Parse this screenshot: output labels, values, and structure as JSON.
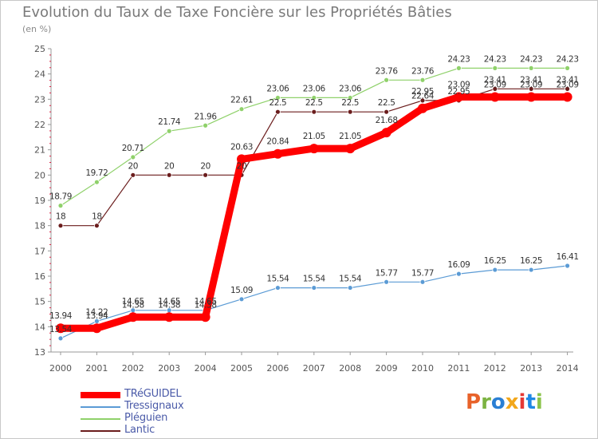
{
  "chart_data": {
    "type": "line",
    "title": "Evolution du Taux de Taxe Foncière sur les Propriétés Bâties",
    "subtitle": "(en %)",
    "xlabel": "",
    "ylabel": "",
    "ylim": [
      13,
      25
    ],
    "yticks": [
      "13",
      "14",
      "15",
      "16",
      "17",
      "18",
      "19",
      "20",
      "21",
      "22",
      "23",
      "24",
      "25"
    ],
    "categories": [
      "2000",
      "2001",
      "2002",
      "2003",
      "2004",
      "2005",
      "2006",
      "2007",
      "2008",
      "2009",
      "2010",
      "2011",
      "2012",
      "2013",
      "2014"
    ],
    "series": [
      {
        "name": "TRéGUIDEL",
        "color": "#ff0000",
        "values": [
          13.94,
          13.94,
          14.38,
          14.38,
          14.38,
          20.63,
          20.84,
          21.05,
          21.05,
          21.68,
          22.64,
          23.09,
          23.09,
          23.09,
          23.09
        ],
        "labels": [
          "13.94",
          "13.94",
          "14.38",
          "14.38",
          "14.38",
          "20.63",
          "20.84",
          "21.05",
          "21.05",
          "21.68",
          "22.64",
          "23.09",
          "23.09",
          "23.09",
          "23.09"
        ]
      },
      {
        "name": "Tressignaux",
        "color": "#5b9bd5",
        "values": [
          13.54,
          14.22,
          14.65,
          14.65,
          14.65,
          15.09,
          15.54,
          15.54,
          15.54,
          15.77,
          15.77,
          16.09,
          16.25,
          16.25,
          16.41
        ],
        "labels": [
          "13.54",
          "14.22",
          "14.65",
          "14.65",
          "14.65",
          "15.09",
          "15.54",
          "15.54",
          "15.54",
          "15.77",
          "15.77",
          "16.09",
          "16.25",
          "16.25",
          "16.41"
        ]
      },
      {
        "name": "Pléguien",
        "color": "#8fd16a",
        "values": [
          18.79,
          19.72,
          20.71,
          21.74,
          21.96,
          22.61,
          23.06,
          23.06,
          23.06,
          23.76,
          23.76,
          24.23,
          24.23,
          24.23,
          24.23
        ],
        "labels": [
          "18.79",
          "19.72",
          "20.71",
          "21.74",
          "21.96",
          "22.61",
          "23.06",
          "23.06",
          "23.06",
          "23.76",
          "23.76",
          "24.23",
          "24.23",
          "24.23",
          "24.23"
        ]
      },
      {
        "name": "Lantic",
        "color": "#6b1d1d",
        "values": [
          18,
          18,
          20,
          20,
          20,
          20,
          22.5,
          22.5,
          22.5,
          22.5,
          22.95,
          22.95,
          23.41,
          23.41,
          23.41
        ],
        "labels": [
          "18",
          "18",
          "20",
          "20",
          "20",
          "20",
          "22.5",
          "22.5",
          "22.5",
          "22.5",
          "22.95",
          "22.95",
          "23.41",
          "23.41",
          "23.41"
        ]
      }
    ],
    "grid": false,
    "legend": "bottom-left"
  },
  "logo": {
    "text": "Proxiti"
  },
  "colors": {
    "title": "#7a7a7a",
    "axis": "#999999",
    "legend_text": "#4a5aa8"
  }
}
